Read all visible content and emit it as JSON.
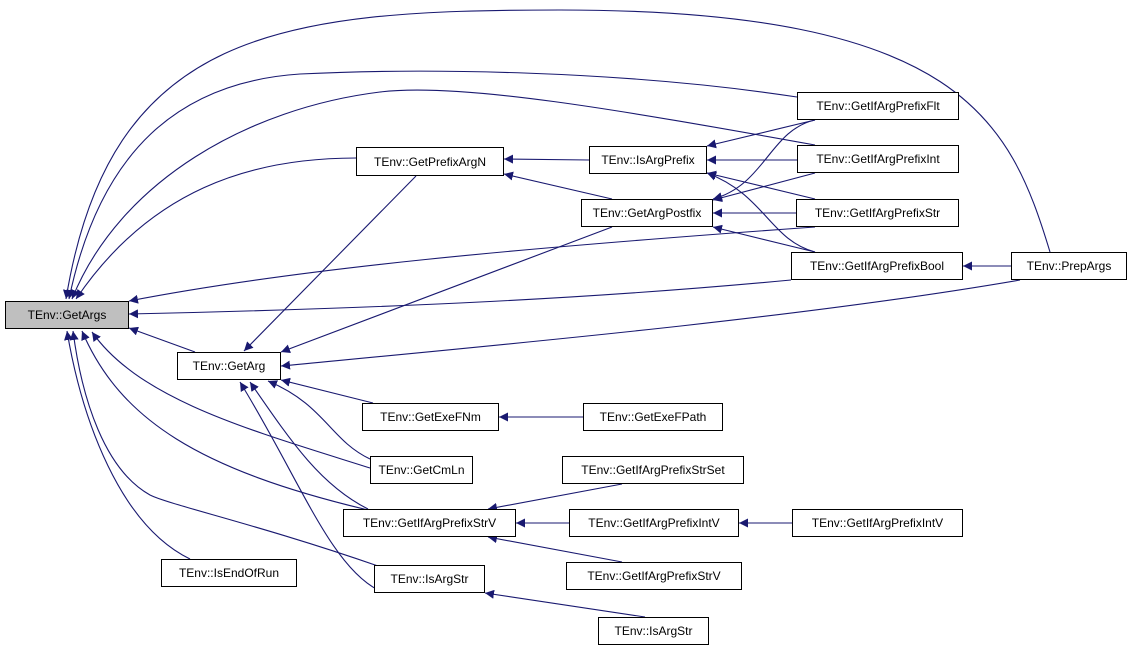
{
  "graph": {
    "edge_color": "#191970",
    "root_fill": "#bfbfbf",
    "nodes": {
      "get_args": "TEnv::GetArgs",
      "get_prefix_arg_n": "TEnv::GetPrefixArgN",
      "is_arg_prefix": "TEnv::IsArgPrefix",
      "get_arg_postfix": "TEnv::GetArgPostfix",
      "get_if_arg_prefix_flt": "TEnv::GetIfArgPrefixFlt",
      "get_if_arg_prefix_int": "TEnv::GetIfArgPrefixInt",
      "get_if_arg_prefix_str": "TEnv::GetIfArgPrefixStr",
      "get_if_arg_prefix_bool": "TEnv::GetIfArgPrefixBool",
      "prep_args": "TEnv::PrepArgs",
      "get_arg": "TEnv::GetArg",
      "get_exe_fnm": "TEnv::GetExeFNm",
      "get_exe_fpath": "TEnv::GetExeFPath",
      "get_cm_ln": "TEnv::GetCmLn",
      "get_if_arg_prefix_str_set": "TEnv::GetIfArgPrefixStrSet",
      "get_if_arg_prefix_str_v": "TEnv::GetIfArgPrefixStrV",
      "get_if_arg_prefix_int_v_1": "TEnv::GetIfArgPrefixIntV",
      "get_if_arg_prefix_int_v_2": "TEnv::GetIfArgPrefixIntV",
      "is_end_of_run": "TEnv::IsEndOfRun",
      "is_arg_str_1": "TEnv::IsArgStr",
      "get_if_arg_prefix_str_v_2": "TEnv::GetIfArgPrefixStrV",
      "is_arg_str_2": "TEnv::IsArgStr"
    }
  }
}
